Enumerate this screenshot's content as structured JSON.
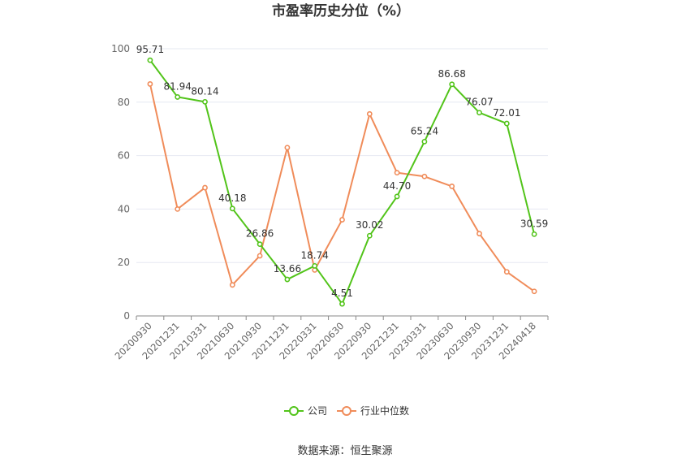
{
  "chart_data": {
    "type": "line",
    "title": "市盈率历史分位（%）",
    "categories": [
      "20200930",
      "20201231",
      "20210331",
      "20210630",
      "20210930",
      "20211231",
      "20220331",
      "20220630",
      "20220930",
      "20221231",
      "20230331",
      "20230630",
      "20230930",
      "20231231",
      "20240418"
    ],
    "series": [
      {
        "name": "公司",
        "color": "#52c41a",
        "values": [
          95.71,
          81.94,
          80.14,
          40.18,
          26.86,
          13.66,
          18.74,
          4.51,
          30.02,
          44.7,
          65.24,
          86.68,
          76.07,
          72.01,
          30.59
        ],
        "labels": [
          "95.71",
          "81.94",
          "80.14",
          "40.18",
          "26.86",
          "13.66",
          "18.74",
          "4.51",
          "30.02",
          "44.70",
          "65.24",
          "86.68",
          "76.07",
          "72.01",
          "30.59"
        ]
      },
      {
        "name": "行业中位数",
        "color": "#f08c5a",
        "values": [
          86.8,
          40.0,
          48.0,
          11.6,
          22.5,
          63.0,
          17.2,
          36.0,
          75.6,
          53.6,
          52.2,
          48.5,
          30.8,
          16.5,
          9.2
        ]
      }
    ],
    "ylim": [
      0,
      100
    ],
    "yticks": [
      0,
      20,
      40,
      60,
      80,
      100
    ],
    "legend_position": "bottom-center",
    "grid": true
  },
  "source_text": "数据来源：恒生聚源"
}
